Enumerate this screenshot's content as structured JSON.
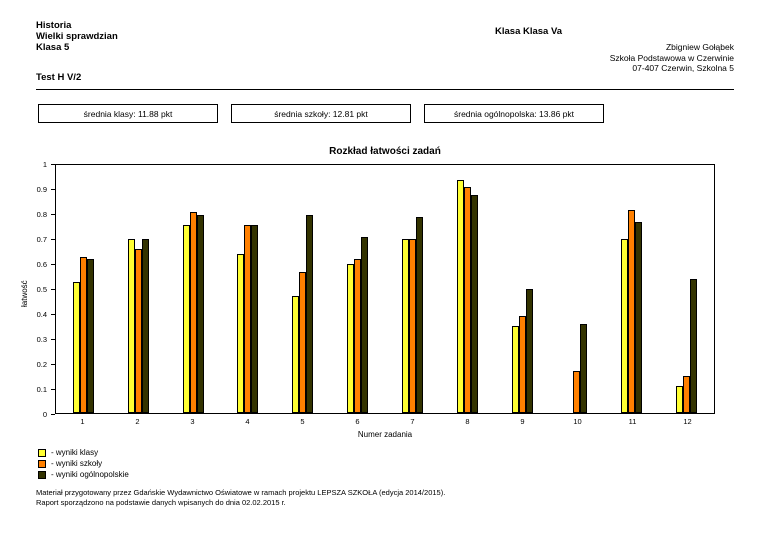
{
  "header": {
    "subject": "Historia",
    "test_name": "Wielki sprawdzian",
    "class_line": "Klasa 5",
    "test_code": "Test H V/2",
    "class_label": "Klasa Klasa Va",
    "teacher": "Zbigniew Gołąbek",
    "school": "Szkoła Podstawowa w Czerwinie",
    "address": "07-407 Czerwin, Szkolna 5"
  },
  "stats": [
    {
      "label": "średnia klasy: 11.88 pkt"
    },
    {
      "label": "średnia szkoły: 12.81 pkt"
    },
    {
      "label": "średnia ogólnopolska: 13.86 pkt"
    }
  ],
  "chart_data": {
    "type": "bar",
    "title": "Rozkład łatwości zadań",
    "xlabel": "Numer zadania",
    "ylabel": "łatwość",
    "ylim": [
      0,
      1
    ],
    "ytick_step": 0.1,
    "grid": false,
    "legend_position": "bottom-left",
    "categories": [
      "1",
      "2",
      "3",
      "4",
      "5",
      "6",
      "7",
      "8",
      "9",
      "10",
      "11",
      "12"
    ],
    "series": [
      {
        "name": "wyniki klasy",
        "legend_label": "- wyniki klasy",
        "color": "#ffff33",
        "values": [
          0.53,
          0.7,
          0.76,
          0.64,
          0.47,
          0.6,
          0.7,
          0.94,
          0.35,
          0.0,
          0.7,
          0.11
        ]
      },
      {
        "name": "wyniki szkoły",
        "legend_label": "- wyniki szkoły",
        "color": "#ff8000",
        "values": [
          0.63,
          0.66,
          0.81,
          0.76,
          0.57,
          0.62,
          0.7,
          0.91,
          0.39,
          0.17,
          0.82,
          0.15
        ]
      },
      {
        "name": "wyniki ogólnopolskie",
        "legend_label": "- wyniki ogólnopolskie",
        "color": "#333300",
        "values": [
          0.62,
          0.7,
          0.8,
          0.76,
          0.8,
          0.71,
          0.79,
          0.88,
          0.5,
          0.36,
          0.77,
          0.54
        ]
      }
    ]
  },
  "footer": {
    "line1": "Materiał przygotowany przez Gdańskie Wydawnictwo Oświatowe w ramach projektu LEPSZA SZKOŁA (edycja 2014/2015).",
    "line2": "Raport sporządzono na podstawie danych wpisanych do dnia 02.02.2015 r."
  }
}
